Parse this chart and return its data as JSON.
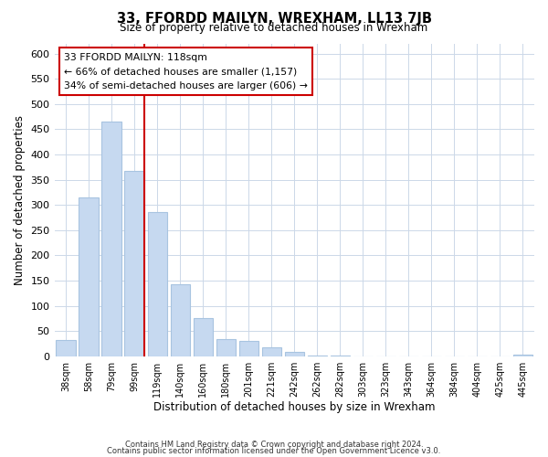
{
  "title": "33, FFORDD MAILYN, WREXHAM, LL13 7JB",
  "subtitle": "Size of property relative to detached houses in Wrexham",
  "xlabel": "Distribution of detached houses by size in Wrexham",
  "ylabel": "Number of detached properties",
  "bar_labels": [
    "38sqm",
    "58sqm",
    "79sqm",
    "99sqm",
    "119sqm",
    "140sqm",
    "160sqm",
    "180sqm",
    "201sqm",
    "221sqm",
    "242sqm",
    "262sqm",
    "282sqm",
    "303sqm",
    "323sqm",
    "343sqm",
    "364sqm",
    "384sqm",
    "404sqm",
    "425sqm",
    "445sqm"
  ],
  "bar_values": [
    32,
    315,
    465,
    368,
    285,
    143,
    76,
    33,
    30,
    17,
    8,
    2,
    1,
    0,
    0,
    0,
    0,
    0,
    0,
    0,
    3
  ],
  "bar_color": "#c6d9f0",
  "bar_edge_color": "#a8c4e0",
  "marker_index": 3,
  "marker_label": "33 FFORDD MAILYN: 118sqm",
  "annotation_line1": "← 66% of detached houses are smaller (1,157)",
  "annotation_line2": "34% of semi-detached houses are larger (606) →",
  "marker_color": "#cc0000",
  "ylim": [
    0,
    620
  ],
  "yticks": [
    0,
    50,
    100,
    150,
    200,
    250,
    300,
    350,
    400,
    450,
    500,
    550,
    600
  ],
  "footer_line1": "Contains HM Land Registry data © Crown copyright and database right 2024.",
  "footer_line2": "Contains public sector information licensed under the Open Government Licence v3.0.",
  "background_color": "#ffffff",
  "grid_color": "#ccd8e8"
}
